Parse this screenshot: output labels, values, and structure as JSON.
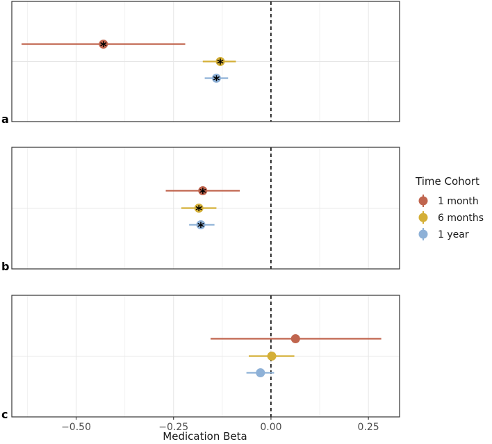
{
  "chart_data": {
    "type": "scatter",
    "subtype": "forest-plot",
    "xlabel": "Medication Beta",
    "xlim": [
      -0.665,
      0.33
    ],
    "xticks": [
      -0.5,
      -0.25,
      0.0,
      0.25
    ],
    "xtick_labels": [
      "−0.50",
      "−0.25",
      "0.00",
      "0.25"
    ],
    "reference_line_x": 0,
    "grid": true,
    "legend": {
      "title": "Time Cohort",
      "position": "right",
      "entries": [
        {
          "label": "1 month",
          "color": "#C0654E"
        },
        {
          "label": "6 months",
          "color": "#D4AF37"
        },
        {
          "label": "1 year",
          "color": "#8EB1D7"
        }
      ]
    },
    "significance_marker": "*",
    "panels": [
      {
        "tag": "a",
        "series": [
          {
            "name": "1 month",
            "estimate": -0.43,
            "ci_low": -0.64,
            "ci_high": -0.22,
            "significant": true
          },
          {
            "name": "6 months",
            "estimate": -0.13,
            "ci_low": -0.175,
            "ci_high": -0.09,
            "significant": true
          },
          {
            "name": "1 year",
            "estimate": -0.14,
            "ci_low": -0.17,
            "ci_high": -0.11,
            "significant": true
          }
        ]
      },
      {
        "tag": "b",
        "series": [
          {
            "name": "1 month",
            "estimate": -0.175,
            "ci_low": -0.27,
            "ci_high": -0.08,
            "significant": true
          },
          {
            "name": "6 months",
            "estimate": -0.185,
            "ci_low": -0.23,
            "ci_high": -0.14,
            "significant": true
          },
          {
            "name": "1 year",
            "estimate": -0.18,
            "ci_low": -0.21,
            "ci_high": -0.145,
            "significant": true
          }
        ]
      },
      {
        "tag": "c",
        "series": [
          {
            "name": "1 month",
            "estimate": 0.063,
            "ci_low": -0.155,
            "ci_high": 0.283,
            "significant": false
          },
          {
            "name": "6 months",
            "estimate": 0.002,
            "ci_low": -0.057,
            "ci_high": 0.06,
            "significant": false
          },
          {
            "name": "1 year",
            "estimate": -0.027,
            "ci_low": -0.063,
            "ci_high": 0.008,
            "significant": false
          }
        ]
      }
    ]
  }
}
